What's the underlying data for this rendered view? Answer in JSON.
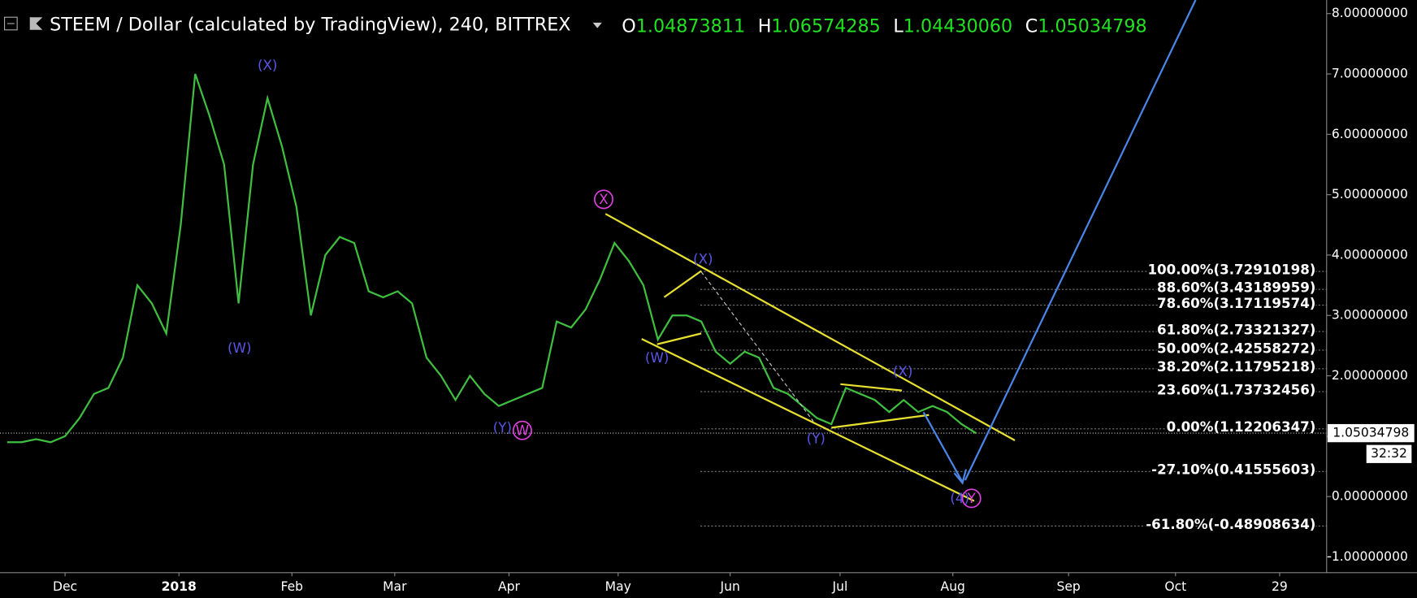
{
  "header": {
    "title": "STEEM / Dollar (calculated by TradingView), 240, BITTREX",
    "o_label": "O",
    "open": "1.04873811",
    "h_label": "H",
    "high": "1.06574285",
    "l_label": "L",
    "low": "1.04430060",
    "c_label": "C",
    "close": "1.05034798",
    "countdown": "32:32"
  },
  "annotations": [
    "(X)",
    "(W)",
    "(Y)",
    "W",
    "X",
    "(X)",
    "(W)",
    "(Y)",
    "(X)",
    "(4)",
    "Y"
  ],
  "chart_data": {
    "type": "line",
    "categories": [
      null,
      null,
      null,
      null,
      null,
      null,
      null,
      null,
      null,
      null,
      null,
      null,
      null,
      null,
      null,
      null,
      null,
      null,
      null,
      null,
      null,
      null,
      null,
      null,
      null,
      null,
      null,
      null,
      null,
      null,
      null,
      null,
      null,
      null,
      null,
      null,
      null,
      null,
      null,
      null,
      null,
      null,
      null,
      null,
      null,
      null,
      null,
      null,
      null,
      null,
      null,
      null,
      null,
      null,
      null,
      null,
      null,
      null,
      null,
      null,
      null,
      null,
      null,
      null,
      null,
      null,
      null,
      null,
      null,
      null,
      null,
      null,
      null,
      null,
      null,
      null,
      null,
      null,
      null,
      null,
      null,
      null,
      null,
      null,
      null,
      null,
      null,
      null,
      null,
      null,
      null,
      null
    ],
    "series": [
      {
        "name": "STEEM / Dollar",
        "color": "#3fbf3f",
        "values": [
          0.9,
          0.9,
          0.95,
          0.9,
          1.0,
          1.3,
          1.7,
          1.8,
          2.3,
          3.5,
          3.2,
          2.7,
          4.5,
          7.0,
          6.3,
          5.5,
          3.2,
          5.5,
          6.6,
          5.8,
          4.8,
          3.0,
          4.0,
          4.3,
          4.2,
          3.4,
          3.3,
          3.4,
          3.2,
          2.3,
          2.0,
          1.6,
          2.0,
          1.7,
          1.5,
          1.6,
          1.7,
          1.8,
          2.9,
          2.8,
          3.1,
          3.6,
          4.2,
          3.9,
          3.5,
          2.6,
          3.0,
          3.0,
          2.9,
          2.4,
          2.2,
          2.4,
          2.3,
          1.8,
          1.7,
          1.5,
          1.3,
          1.2,
          1.8,
          1.7,
          1.6,
          1.4,
          1.6,
          1.4,
          1.5,
          1.4,
          1.2,
          1.05,
          null,
          null,
          null,
          null,
          null,
          null,
          null,
          null,
          null,
          null,
          null,
          null,
          null,
          null,
          null,
          null,
          null,
          null,
          null,
          null,
          null,
          null,
          null,
          null
        ]
      }
    ],
    "xticks": [
      {
        "value": 4,
        "label": "Dec"
      },
      {
        "value": 11.875,
        "label": "2018"
      },
      {
        "value": 19.69,
        "label": "Feb"
      },
      {
        "value": 26.8,
        "label": "Mar"
      },
      {
        "value": 34.7,
        "label": "Apr"
      },
      {
        "value": 42.25,
        "label": "May"
      },
      {
        "value": 50,
        "label": "Jun"
      },
      {
        "value": 57.6,
        "label": "Jul"
      },
      {
        "value": 65.4,
        "label": "Aug"
      },
      {
        "value": 73.4,
        "label": "Sep"
      },
      {
        "value": 80.8,
        "label": "Oct"
      },
      {
        "value": 88,
        "label": "29"
      }
    ],
    "ylim": [
      -1.26,
      8.225
    ],
    "yticks": [
      {
        "value": -1,
        "label": "-1.00000000"
      },
      {
        "value": 0,
        "label": "0.00000000"
      },
      {
        "value": 1,
        "label": "1.00000000"
      },
      {
        "value": 2,
        "label": "2.00000000"
      },
      {
        "value": 3,
        "label": "3.00000000"
      },
      {
        "value": 4,
        "label": "4.00000000"
      },
      {
        "value": 5,
        "label": "5.00000000"
      },
      {
        "value": 6,
        "label": "6.00000000"
      },
      {
        "value": 7,
        "label": "7.00000000"
      },
      {
        "value": 8,
        "label": "8.00000000"
      }
    ],
    "grid": false,
    "fib_levels": [
      {
        "value": 3.72910198,
        "label": "100.00%(3.72910198)"
      },
      {
        "value": 3.43189959,
        "label": "88.60%(3.43189959)"
      },
      {
        "value": 3.17119574,
        "label": "78.60%(3.17119574)"
      },
      {
        "value": 2.73321327,
        "label": "61.80%(2.73321327)"
      },
      {
        "value": 2.42558272,
        "label": "50.00%(2.42558272)"
      },
      {
        "value": 2.11795218,
        "label": "38.20%(2.11795218)"
      },
      {
        "value": 1.73732456,
        "label": "23.60%(1.73732456)"
      },
      {
        "value": 1.12206347,
        "label": "0.00%(1.12206347)"
      },
      {
        "value": 0.41555603,
        "label": "-27.10%(0.41555603)"
      },
      {
        "value": -0.48908634,
        "label": "-61.80%(-0.48908634)"
      }
    ]
  }
}
